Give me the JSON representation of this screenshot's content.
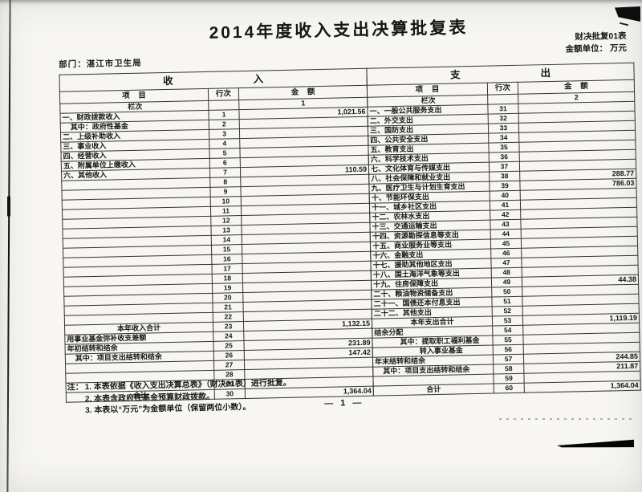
{
  "document": {
    "title": "2014年度收入支出决算批复表",
    "form_code": "财决批复01表",
    "unit_label": "金额单位：",
    "unit_value": "万元",
    "department_label": "部门：",
    "department_value": "湛江市卫生局",
    "page_number": "— 1 —",
    "notes_prefix": "注：",
    "notes": [
      "1. 本表依据《收入支出决算总表》（财决01表）进行批复。",
      "2. 本表含政府性基金预算财政拨款。",
      "3. 本表以“万元”为金额单位（保留两位小数）。"
    ]
  },
  "table": {
    "income": {
      "section_title": "收入",
      "headers": {
        "item": "项 目",
        "line_no": "行次",
        "amount": "金 额"
      },
      "rows": [
        {
          "label": "栏次",
          "line": "",
          "amount": "1",
          "style": "lanci"
        },
        {
          "label": "一、财政拨款收入",
          "line": "1",
          "amount": "1,021.56",
          "style": ""
        },
        {
          "label": "其中：政府性基金",
          "line": "2",
          "amount": "",
          "style": "indent1"
        },
        {
          "label": "二、上级补助收入",
          "line": "3",
          "amount": "",
          "style": ""
        },
        {
          "label": "三、事业收入",
          "line": "4",
          "amount": "",
          "style": ""
        },
        {
          "label": "四、经营收入",
          "line": "5",
          "amount": "",
          "style": ""
        },
        {
          "label": "五、附属单位上缴收入",
          "line": "6",
          "amount": "",
          "style": ""
        },
        {
          "label": "六、其他收入",
          "line": "7",
          "amount": "110.59",
          "style": ""
        },
        {
          "label": "",
          "line": "8",
          "amount": "",
          "style": ""
        },
        {
          "label": "",
          "line": "9",
          "amount": "",
          "style": ""
        },
        {
          "label": "",
          "line": "10",
          "amount": "",
          "style": ""
        },
        {
          "label": "",
          "line": "11",
          "amount": "",
          "style": ""
        },
        {
          "label": "",
          "line": "12",
          "amount": "",
          "style": ""
        },
        {
          "label": "",
          "line": "13",
          "amount": "",
          "style": ""
        },
        {
          "label": "",
          "line": "14",
          "amount": "",
          "style": ""
        },
        {
          "label": "",
          "line": "15",
          "amount": "",
          "style": ""
        },
        {
          "label": "",
          "line": "16",
          "amount": "",
          "style": ""
        },
        {
          "label": "",
          "line": "17",
          "amount": "",
          "style": ""
        },
        {
          "label": "",
          "line": "18",
          "amount": "",
          "style": ""
        },
        {
          "label": "",
          "line": "19",
          "amount": "",
          "style": ""
        },
        {
          "label": "",
          "line": "20",
          "amount": "",
          "style": ""
        },
        {
          "label": "",
          "line": "21",
          "amount": "",
          "style": ""
        },
        {
          "label": "",
          "line": "22",
          "amount": "",
          "style": ""
        },
        {
          "label": "本年收入合计",
          "line": "23",
          "amount": "1,132.15",
          "style": "center"
        },
        {
          "label": "用事业基金弥补收支差额",
          "line": "24",
          "amount": "",
          "style": ""
        },
        {
          "label": "年初结转和结余",
          "line": "25",
          "amount": "231.89",
          "style": ""
        },
        {
          "label": "其中：项目支出结转和结余",
          "line": "26",
          "amount": "147.42",
          "style": "indent1"
        },
        {
          "label": "",
          "line": "27",
          "amount": "",
          "style": ""
        },
        {
          "label": "",
          "line": "28",
          "amount": "",
          "style": ""
        },
        {
          "label": "",
          "line": "29",
          "amount": "",
          "style": ""
        },
        {
          "label": "合计",
          "line": "30",
          "amount": "1,364.04",
          "style": "center"
        }
      ]
    },
    "expense": {
      "section_title": "支出",
      "headers": {
        "item": "项 目",
        "line_no": "行次",
        "amount": "金 额"
      },
      "rows": [
        {
          "label": "栏次",
          "line": "",
          "amount": "2",
          "style": "lanci"
        },
        {
          "label": "一、一般公共服务支出",
          "line": "31",
          "amount": "",
          "style": ""
        },
        {
          "label": "二、外交支出",
          "line": "32",
          "amount": "",
          "style": ""
        },
        {
          "label": "三、国防支出",
          "line": "33",
          "amount": "",
          "style": ""
        },
        {
          "label": "四、公共安全支出",
          "line": "34",
          "amount": "",
          "style": ""
        },
        {
          "label": "五、教育支出",
          "line": "35",
          "amount": "",
          "style": ""
        },
        {
          "label": "六、科学技术支出",
          "line": "36",
          "amount": "",
          "style": ""
        },
        {
          "label": "七、文化体育与传媒支出",
          "line": "37",
          "amount": "",
          "style": ""
        },
        {
          "label": "八、社会保障和就业支出",
          "line": "38",
          "amount": "288.77",
          "style": ""
        },
        {
          "label": "九、医疗卫生与计划生育支出",
          "line": "39",
          "amount": "786.03",
          "style": ""
        },
        {
          "label": "十、节能环保支出",
          "line": "40",
          "amount": "",
          "style": ""
        },
        {
          "label": "十一、城乡社区支出",
          "line": "41",
          "amount": "",
          "style": ""
        },
        {
          "label": "十二、农林水支出",
          "line": "42",
          "amount": "",
          "style": ""
        },
        {
          "label": "十三、交通运输支出",
          "line": "43",
          "amount": "",
          "style": ""
        },
        {
          "label": "十四、资源勘探信息等支出",
          "line": "44",
          "amount": "",
          "style": ""
        },
        {
          "label": "十五、商业服务业等支出",
          "line": "45",
          "amount": "",
          "style": ""
        },
        {
          "label": "十六、金融支出",
          "line": "46",
          "amount": "",
          "style": ""
        },
        {
          "label": "十七、援助其他地区支出",
          "line": "47",
          "amount": "",
          "style": ""
        },
        {
          "label": "十八、国土海洋气象等支出",
          "line": "48",
          "amount": "",
          "style": ""
        },
        {
          "label": "十九、住房保障支出",
          "line": "49",
          "amount": "44.38",
          "style": ""
        },
        {
          "label": "二十、粮油物资储备支出",
          "line": "50",
          "amount": "",
          "style": ""
        },
        {
          "label": "二十一、国债还本付息支出",
          "line": "51",
          "amount": "",
          "style": ""
        },
        {
          "label": "二十二、其他支出",
          "line": "52",
          "amount": "",
          "style": ""
        },
        {
          "label": "本年支出合计",
          "line": "53",
          "amount": "1,119.19",
          "style": "center"
        },
        {
          "label": "结余分配",
          "line": "54",
          "amount": "",
          "style": ""
        },
        {
          "label": "其中：提取职工福利基金",
          "line": "55",
          "amount": "",
          "style": "indent2"
        },
        {
          "label": "转入事业基金",
          "line": "56",
          "amount": "",
          "style": "indent3"
        },
        {
          "label": "年末结转和结余",
          "line": "57",
          "amount": "244.85",
          "style": ""
        },
        {
          "label": "其中：项目支出结转和结余",
          "line": "58",
          "amount": "211.87",
          "style": "indent1"
        },
        {
          "label": "",
          "line": "59",
          "amount": "",
          "style": ""
        },
        {
          "label": "合计",
          "line": "60",
          "amount": "1,364.04",
          "style": "center"
        }
      ]
    }
  },
  "colors": {
    "paper": "#f7f6f2",
    "ink": "#171717",
    "grid_line": "#35332f",
    "artifact": "#0c0c0c"
  }
}
